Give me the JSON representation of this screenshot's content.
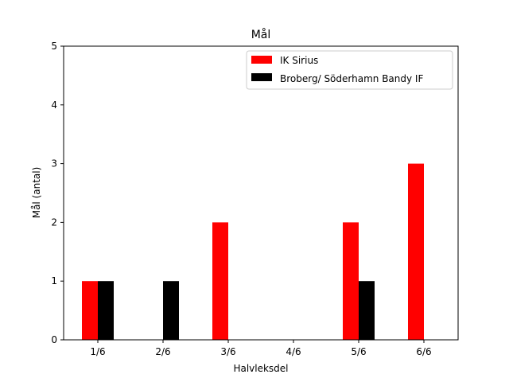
{
  "chart_data": {
    "type": "bar",
    "title": "Mål",
    "xlabel": "Halvleksdel",
    "ylabel": "Mål (antal)",
    "categories": [
      "1/6",
      "2/6",
      "3/6",
      "4/6",
      "5/6",
      "6/6"
    ],
    "ylim": [
      0,
      5
    ],
    "yticks": [
      0,
      1,
      2,
      3,
      4,
      5
    ],
    "grid": false,
    "legend_position": "top-right",
    "series": [
      {
        "name": "IK Sirius",
        "color": "#ff0000",
        "values": [
          1,
          0,
          2,
          0,
          2,
          3
        ]
      },
      {
        "name": "Broberg/ Söderhamn Bandy IF",
        "color": "#000000",
        "values": [
          1,
          1,
          0,
          0,
          1,
          0
        ]
      }
    ]
  }
}
